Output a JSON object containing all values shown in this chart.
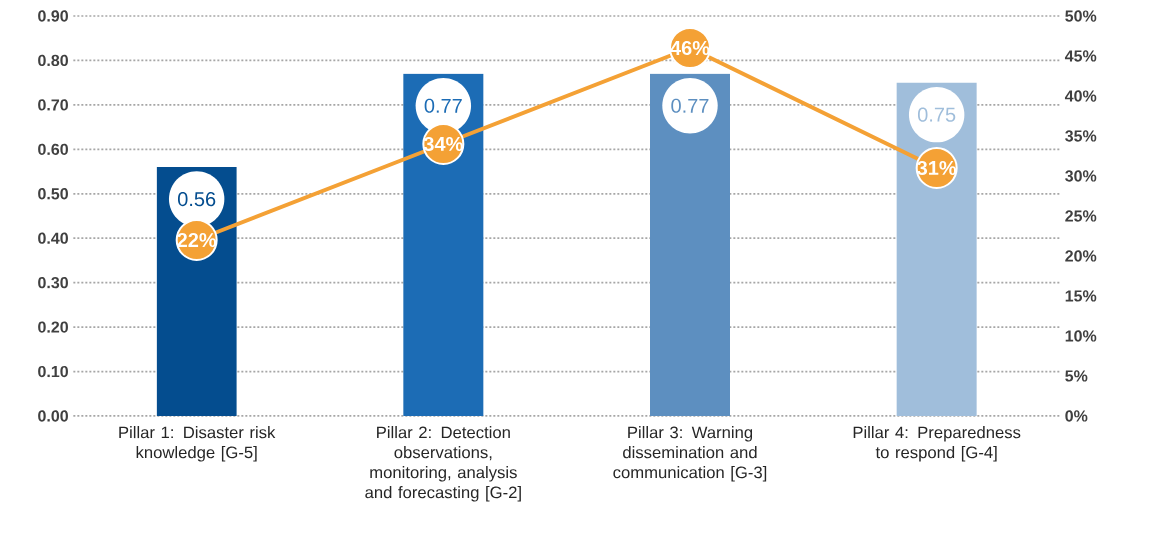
{
  "chart_data": {
    "type": "bar",
    "categories": [
      "Pillar 1: Disaster risk knowledge [G-5]",
      "Pillar 2: Detection observations, monitoring, analysis and forecasting [G-2]",
      "Pillar 3: Warning dissemination and communication [G-3]",
      "Pillar 4: Preparedness to respond [G-4]"
    ],
    "series": [
      {
        "colors": [
          "#044d8f",
          "#1c6cb5",
          "#5d8fc0",
          "#a0bedb"
        ],
        "values": [
          0.56,
          0.77,
          0.77,
          0.75
        ],
        "value_labels": [
          "0.56",
          "0.77",
          "0.77",
          "0.75"
        ]
      },
      {
        "type": "line",
        "axis": "y2",
        "color": "#f4a135",
        "marker": "circle",
        "line_style": "solid",
        "values": [
          22,
          34,
          46,
          31
        ],
        "value_labels": [
          "22%",
          "34%",
          "46%",
          "31%"
        ]
      }
    ],
    "ylim": [
      0,
      0.9
    ],
    "yticks": [
      {
        "value": 0,
        "label": "0.00"
      },
      {
        "value": 0.1,
        "label": "0.10"
      },
      {
        "value": 0.2,
        "label": "0.20"
      },
      {
        "value": 0.3,
        "label": "0.30"
      },
      {
        "value": 0.4,
        "label": "0.40"
      },
      {
        "value": 0.5,
        "label": "0.50"
      },
      {
        "value": 0.6,
        "label": "0.60"
      },
      {
        "value": 0.7,
        "label": "0.70"
      },
      {
        "value": 0.8,
        "label": "0.80"
      },
      {
        "value": 0.9,
        "label": "0.90"
      }
    ],
    "y2lim": [
      0,
      50
    ],
    "y2ticks": [
      {
        "value": 0,
        "label": "0%"
      },
      {
        "value": 5,
        "label": "5%"
      },
      {
        "value": 10,
        "label": "10%"
      },
      {
        "value": 15,
        "label": "15%"
      },
      {
        "value": 20,
        "label": "20%"
      },
      {
        "value": 25,
        "label": "25%"
      },
      {
        "value": 30,
        "label": "30%"
      },
      {
        "value": 35,
        "label": "35%"
      },
      {
        "value": 40,
        "label": "40%"
      },
      {
        "value": 45,
        "label": "45%"
      },
      {
        "value": 50,
        "label": "50%"
      }
    ],
    "grid": "y"
  }
}
